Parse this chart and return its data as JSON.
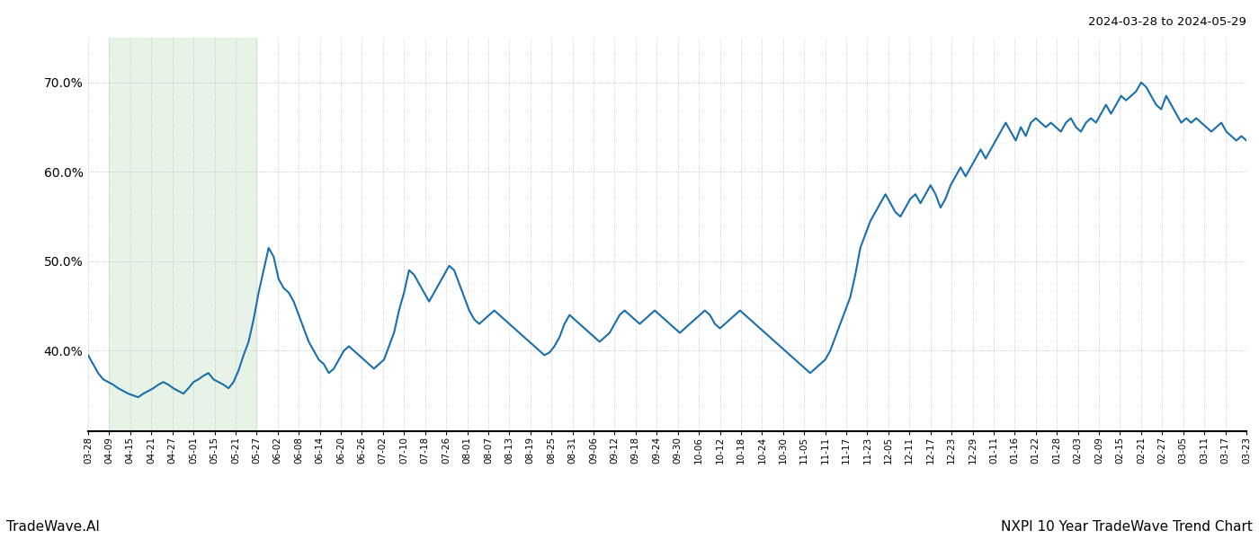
{
  "title_top_right": "2024-03-28 to 2024-05-29",
  "title_bottom_left": "TradeWave.AI",
  "title_bottom_right": "NXPI 10 Year TradeWave Trend Chart",
  "line_color": "#1a6fab",
  "line_width": 1.5,
  "shade_color": "#d4ead4",
  "shade_alpha": 0.55,
  "background_color": "#ffffff",
  "grid_color": "#bbbbbb",
  "ylim_min": 31.0,
  "ylim_max": 75.0,
  "yticks": [
    40.0,
    50.0,
    60.0,
    70.0
  ],
  "x_labels": [
    "03-28",
    "04-09",
    "04-15",
    "04-21",
    "04-27",
    "05-01",
    "05-15",
    "05-21",
    "05-27",
    "06-02",
    "06-08",
    "06-14",
    "06-20",
    "06-26",
    "07-02",
    "07-10",
    "07-18",
    "07-26",
    "08-01",
    "08-07",
    "08-13",
    "08-19",
    "08-25",
    "08-31",
    "09-06",
    "09-12",
    "09-18",
    "09-24",
    "09-30",
    "10-06",
    "10-12",
    "10-18",
    "10-24",
    "10-30",
    "11-05",
    "11-11",
    "11-17",
    "11-23",
    "12-05",
    "12-11",
    "12-17",
    "12-23",
    "12-29",
    "01-11",
    "01-16",
    "01-22",
    "01-28",
    "02-03",
    "02-09",
    "02-15",
    "02-21",
    "02-27",
    "03-05",
    "03-11",
    "03-17",
    "03-23"
  ],
  "shade_label_start": "04-09",
  "shade_label_end": "05-27",
  "y_values": [
    39.5,
    38.5,
    37.5,
    36.8,
    36.5,
    36.2,
    35.8,
    35.5,
    35.2,
    35.0,
    34.8,
    35.2,
    35.5,
    35.8,
    36.2,
    36.5,
    36.2,
    35.8,
    35.5,
    35.2,
    35.8,
    36.5,
    36.8,
    37.2,
    37.5,
    36.8,
    36.5,
    36.2,
    35.8,
    36.5,
    37.8,
    39.5,
    41.0,
    43.5,
    46.5,
    49.0,
    51.5,
    50.5,
    48.0,
    47.0,
    46.5,
    45.5,
    44.0,
    42.5,
    41.0,
    40.0,
    39.0,
    38.5,
    37.5,
    38.0,
    39.0,
    40.0,
    40.5,
    40.0,
    39.5,
    39.0,
    38.5,
    38.0,
    38.5,
    39.0,
    40.5,
    42.0,
    44.5,
    46.5,
    49.0,
    48.5,
    47.5,
    46.5,
    45.5,
    46.5,
    47.5,
    48.5,
    49.5,
    49.0,
    47.5,
    46.0,
    44.5,
    43.5,
    43.0,
    43.5,
    44.0,
    44.5,
    44.0,
    43.5,
    43.0,
    42.5,
    42.0,
    41.5,
    41.0,
    40.5,
    40.0,
    39.5,
    39.8,
    40.5,
    41.5,
    43.0,
    44.0,
    43.5,
    43.0,
    42.5,
    42.0,
    41.5,
    41.0,
    41.5,
    42.0,
    43.0,
    44.0,
    44.5,
    44.0,
    43.5,
    43.0,
    43.5,
    44.0,
    44.5,
    44.0,
    43.5,
    43.0,
    42.5,
    42.0,
    42.5,
    43.0,
    43.5,
    44.0,
    44.5,
    44.0,
    43.0,
    42.5,
    43.0,
    43.5,
    44.0,
    44.5,
    44.0,
    43.5,
    43.0,
    42.5,
    42.0,
    41.5,
    41.0,
    40.5,
    40.0,
    39.5,
    39.0,
    38.5,
    38.0,
    37.5,
    38.0,
    38.5,
    39.0,
    40.0,
    41.5,
    43.0,
    44.5,
    46.0,
    48.5,
    51.5,
    53.0,
    54.5,
    55.5,
    56.5,
    57.5,
    56.5,
    55.5,
    55.0,
    56.0,
    57.0,
    57.5,
    56.5,
    57.5,
    58.5,
    57.5,
    56.0,
    57.0,
    58.5,
    59.5,
    60.5,
    59.5,
    60.5,
    61.5,
    62.5,
    61.5,
    62.5,
    63.5,
    64.5,
    65.5,
    64.5,
    63.5,
    65.0,
    64.0,
    65.5,
    66.0,
    65.5,
    65.0,
    65.5,
    65.0,
    64.5,
    65.5,
    66.0,
    65.0,
    64.5,
    65.5,
    66.0,
    65.5,
    66.5,
    67.5,
    66.5,
    67.5,
    68.5,
    68.0,
    68.5,
    69.0,
    70.0,
    69.5,
    68.5,
    67.5,
    67.0,
    68.5,
    67.5,
    66.5,
    65.5,
    66.0,
    65.5,
    66.0,
    65.5,
    65.0,
    64.5,
    65.0,
    65.5,
    64.5,
    64.0,
    63.5,
    64.0,
    63.5
  ]
}
